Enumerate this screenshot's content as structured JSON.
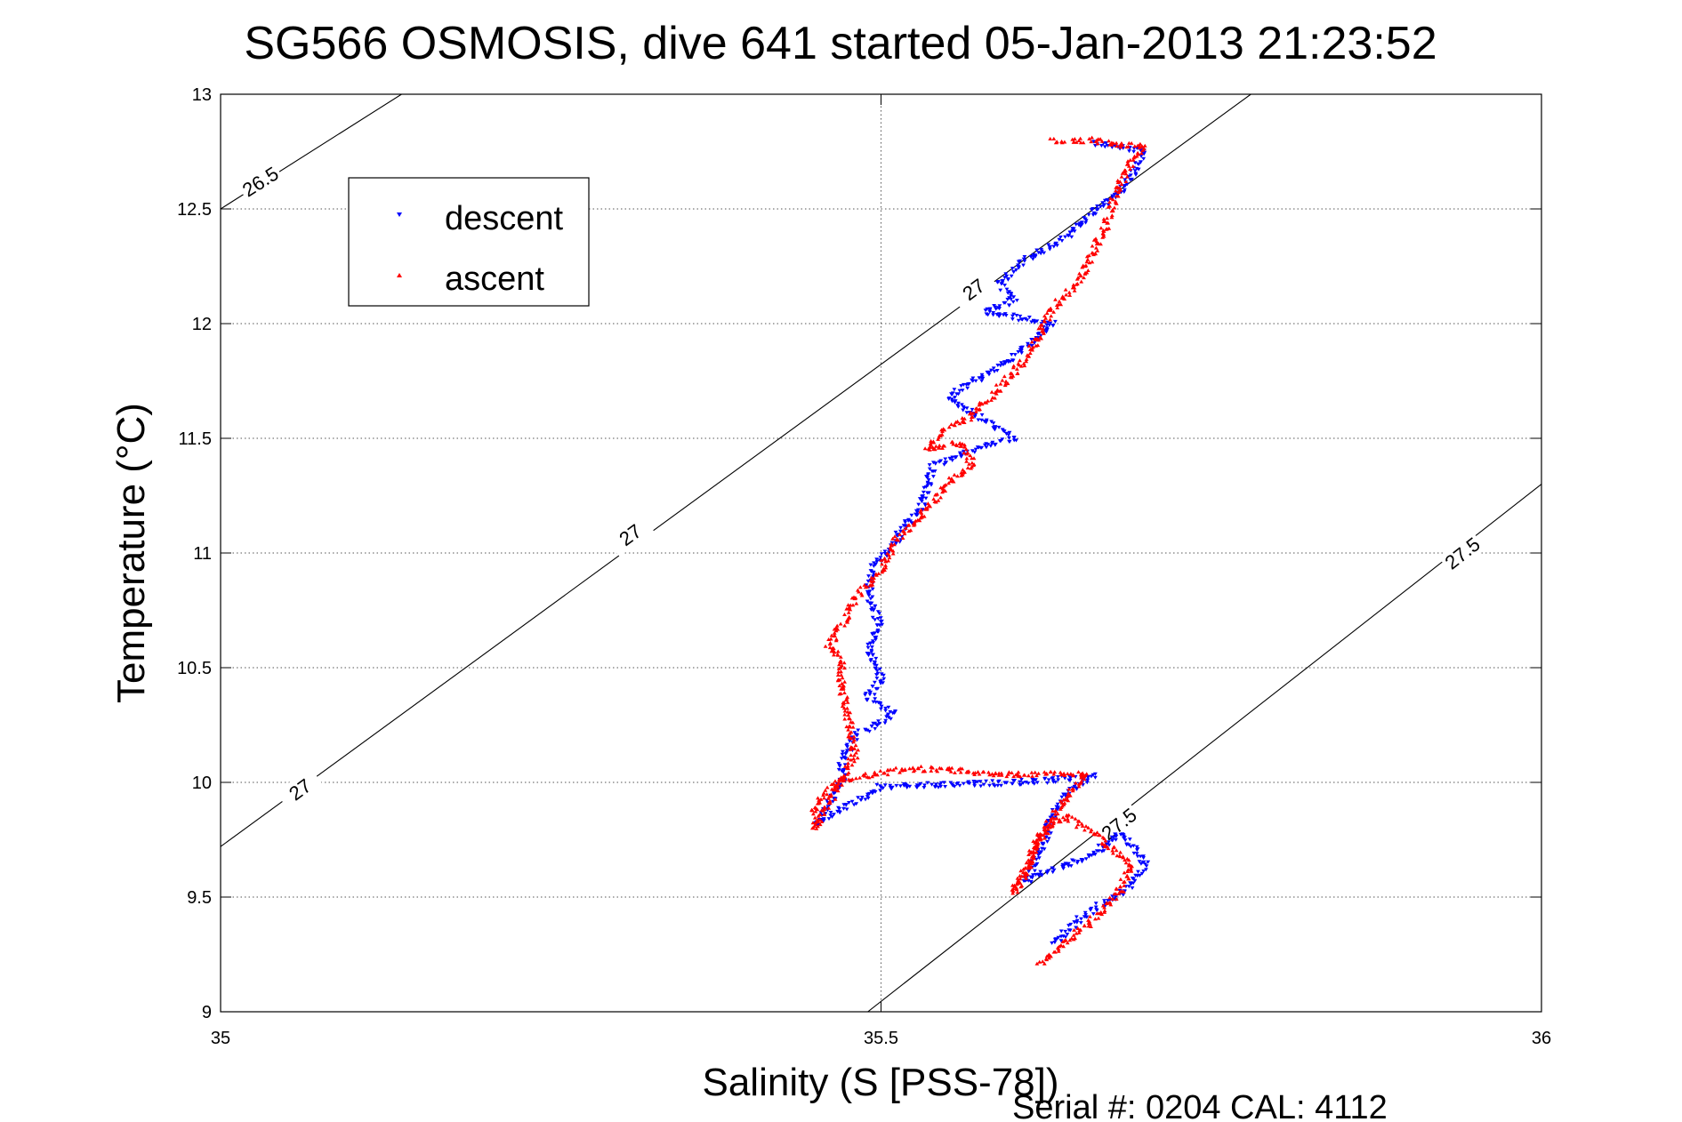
{
  "chart_data": {
    "type": "scatter",
    "title": "SG566 OSMOSIS, dive 641 started 05-Jan-2013 21:23:52",
    "xlabel": "Salinity (S [PSS-78])",
    "ylabel": "Temperature (°C)",
    "footer": "Serial #: 0204  CAL: 4112",
    "xlim": [
      35,
      36
    ],
    "ylim": [
      9,
      13
    ],
    "xticks": [
      "35",
      "35.5",
      "36"
    ],
    "yticks": [
      "9",
      "9.5",
      "10",
      "10.5",
      "11",
      "11.5",
      "12",
      "12.5",
      "13"
    ],
    "grid": true,
    "legend_position": "top-left",
    "isopycnals": [
      {
        "label": "26.5",
        "points": [
          [
            35.0,
            12.5
          ],
          [
            35.137,
            13.0
          ]
        ],
        "labels_at": [
          [
            35.03,
            12.62
          ]
        ]
      },
      {
        "label": "27",
        "points": [
          [
            35.0,
            9.72
          ],
          [
            35.78,
            13.0
          ]
        ],
        "labels_at": [
          [
            35.06,
            9.97
          ],
          [
            35.31,
            11.08
          ],
          [
            35.57,
            12.15
          ]
        ]
      },
      {
        "label": "27.5",
        "points": [
          [
            35.49,
            9.0
          ],
          [
            36.0,
            11.3
          ]
        ],
        "labels_at": [
          [
            35.68,
            9.82
          ],
          [
            35.94,
            11.0
          ]
        ]
      }
    ],
    "series": [
      {
        "name": "descent",
        "color": "#0000ff",
        "marker": "triangle-down",
        "path": [
          [
            35.66,
            12.79
          ],
          [
            35.7,
            12.75
          ],
          [
            35.685,
            12.6
          ],
          [
            35.66,
            12.48
          ],
          [
            35.64,
            12.38
          ],
          [
            35.61,
            12.28
          ],
          [
            35.59,
            12.18
          ],
          [
            35.6,
            12.1
          ],
          [
            35.58,
            12.05
          ],
          [
            35.63,
            12.0
          ],
          [
            35.6,
            11.85
          ],
          [
            35.57,
            11.75
          ],
          [
            35.55,
            11.68
          ],
          [
            35.58,
            11.57
          ],
          [
            35.6,
            11.5
          ],
          [
            35.57,
            11.45
          ],
          [
            35.54,
            11.38
          ],
          [
            35.53,
            11.2
          ],
          [
            35.51,
            11.05
          ],
          [
            35.495,
            10.95
          ],
          [
            35.49,
            10.82
          ],
          [
            35.5,
            10.68
          ],
          [
            35.49,
            10.58
          ],
          [
            35.5,
            10.45
          ],
          [
            35.49,
            10.37
          ],
          [
            35.51,
            10.3
          ],
          [
            35.48,
            10.2
          ],
          [
            35.47,
            10.08
          ],
          [
            35.47,
            10.0
          ],
          [
            35.46,
            9.9
          ],
          [
            35.45,
            9.82
          ],
          [
            35.5,
            9.98
          ],
          [
            35.55,
            9.99
          ],
          [
            35.6,
            10.0
          ],
          [
            35.63,
            10.01
          ],
          [
            35.66,
            10.03
          ],
          [
            35.64,
            9.95
          ],
          [
            35.63,
            9.85
          ],
          [
            35.62,
            9.7
          ],
          [
            35.61,
            9.57
          ],
          [
            35.63,
            9.62
          ],
          [
            35.66,
            9.68
          ],
          [
            35.68,
            9.78
          ],
          [
            35.69,
            9.72
          ],
          [
            35.7,
            9.65
          ],
          [
            35.69,
            9.55
          ],
          [
            35.67,
            9.48
          ],
          [
            35.65,
            9.4
          ],
          [
            35.63,
            9.3
          ]
        ],
        "count": 1100
      },
      {
        "name": "ascent",
        "color": "#ff0000",
        "marker": "triangle-up",
        "path": [
          [
            35.62,
            9.21
          ],
          [
            35.64,
            9.3
          ],
          [
            35.66,
            9.4
          ],
          [
            35.68,
            9.52
          ],
          [
            35.69,
            9.65
          ],
          [
            35.67,
            9.73
          ],
          [
            35.66,
            9.78
          ],
          [
            35.64,
            9.85
          ],
          [
            35.62,
            9.78
          ],
          [
            35.61,
            9.62
          ],
          [
            35.6,
            9.52
          ],
          [
            35.615,
            9.68
          ],
          [
            35.63,
            9.85
          ],
          [
            35.645,
            9.97
          ],
          [
            35.655,
            10.04
          ],
          [
            35.61,
            10.03
          ],
          [
            35.56,
            10.05
          ],
          [
            35.52,
            10.06
          ],
          [
            35.5,
            10.04
          ],
          [
            35.47,
            10.01
          ],
          [
            35.45,
            9.9
          ],
          [
            35.45,
            9.8
          ],
          [
            35.465,
            9.95
          ],
          [
            35.48,
            10.12
          ],
          [
            35.475,
            10.3
          ],
          [
            35.47,
            10.4
          ],
          [
            35.47,
            10.52
          ],
          [
            35.46,
            10.6
          ],
          [
            35.47,
            10.68
          ],
          [
            35.48,
            10.8
          ],
          [
            35.5,
            10.92
          ],
          [
            35.51,
            11.05
          ],
          [
            35.53,
            11.16
          ],
          [
            35.55,
            11.3
          ],
          [
            35.57,
            11.38
          ],
          [
            35.56,
            11.48
          ],
          [
            35.535,
            11.45
          ],
          [
            35.55,
            11.54
          ],
          [
            35.57,
            11.6
          ],
          [
            35.59,
            11.72
          ],
          [
            35.61,
            11.85
          ],
          [
            35.62,
            11.95
          ],
          [
            35.63,
            12.07
          ],
          [
            35.65,
            12.18
          ],
          [
            35.66,
            12.3
          ],
          [
            35.67,
            12.43
          ],
          [
            35.68,
            12.6
          ],
          [
            35.69,
            12.71
          ],
          [
            35.7,
            12.77
          ],
          [
            35.68,
            12.78
          ],
          [
            35.66,
            12.8
          ],
          [
            35.64,
            12.79
          ],
          [
            35.63,
            12.8
          ]
        ],
        "count": 1100
      }
    ]
  }
}
